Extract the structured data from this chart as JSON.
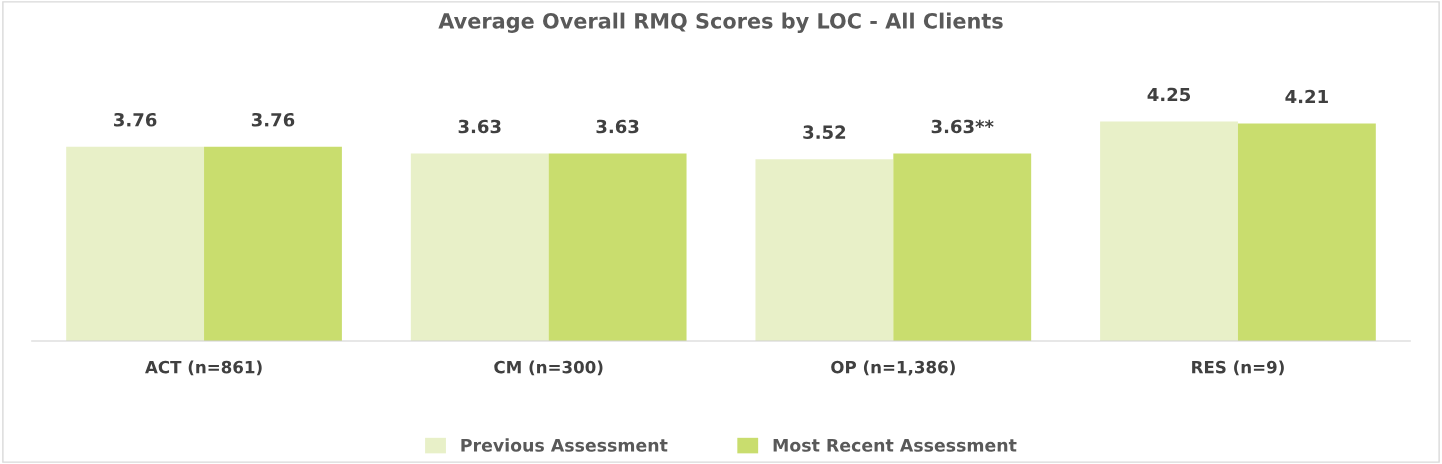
{
  "chart_data": {
    "type": "bar",
    "title": "Average Overall RMQ Scores by LOC - All Clients",
    "categories": [
      "ACT (n=861)",
      "CM (n=300)",
      "OP (n=1,386)",
      "RES (n=9)"
    ],
    "series": [
      {
        "name": "Previous Assessment",
        "color": "#e8f0c8",
        "values": [
          3.76,
          3.63,
          3.52,
          4.25
        ],
        "value_labels": [
          "3.76",
          "3.63",
          "3.52",
          "4.25"
        ]
      },
      {
        "name": "Most Recent Assessment",
        "color": "#c9dd6e",
        "values": [
          3.76,
          3.63,
          3.63,
          4.21
        ],
        "value_labels": [
          "3.76",
          "3.63",
          "3.63**",
          "4.21"
        ]
      }
    ],
    "tick_labels": "x",
    "grid": false,
    "legend": "bottom"
  }
}
